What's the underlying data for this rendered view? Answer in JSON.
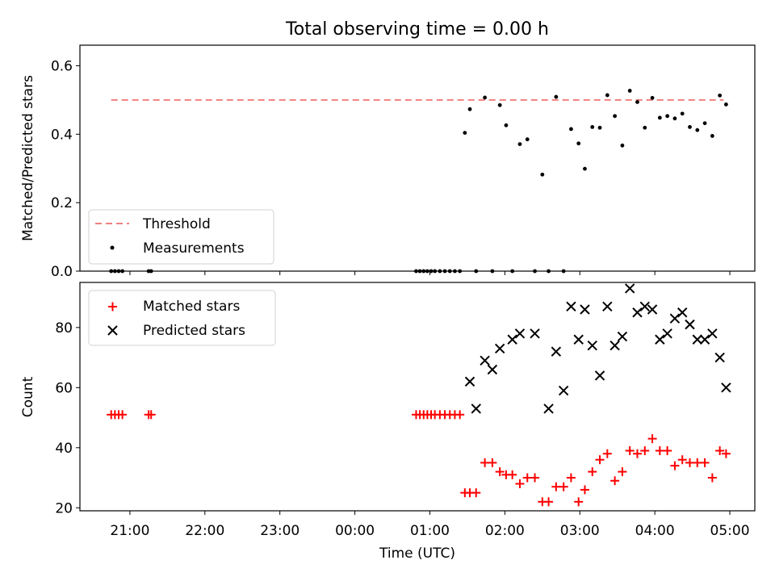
{
  "chart_data": [
    {
      "type": "scatter",
      "panel": "top",
      "title": "Total observing time = 0.00 h",
      "xlabel": "",
      "ylabel": "Matched/Predicted stars",
      "xlim": [
        "20:20",
        "05:20"
      ],
      "ylim": [
        0.0,
        0.66
      ],
      "y_ticks": [
        0.0,
        0.2,
        0.4,
        0.6
      ],
      "y_tick_labels": [
        "0.0",
        "0.2",
        "0.4",
        "0.6"
      ],
      "grid": false,
      "legend_position": "lower-left",
      "series": [
        {
          "name": "Threshold",
          "style": "dashed-line",
          "color": "#f08080",
          "x": [
            "20:45",
            "04:55"
          ],
          "y": [
            0.5,
            0.5
          ]
        },
        {
          "name": "Measurements",
          "style": "dot",
          "color": "#000000",
          "x": [
            "20:45",
            "20:48",
            "20:51",
            "20:54",
            "21:15",
            "21:17",
            "00:49",
            "00:52",
            "00:55",
            "00:58",
            "01:01",
            "01:04",
            "01:08",
            "01:12",
            "01:16",
            "01:20",
            "01:24",
            "01:28",
            "01:32",
            "01:37",
            "01:44",
            "01:50",
            "01:56",
            "02:01",
            "02:06",
            "02:12",
            "02:18",
            "02:24",
            "02:30",
            "02:35",
            "02:41",
            "02:47",
            "02:53",
            "02:59",
            "03:04",
            "03:10",
            "03:16",
            "03:22",
            "03:28",
            "03:34",
            "03:40",
            "03:46",
            "03:52",
            "03:58",
            "04:04",
            "04:10",
            "04:16",
            "04:22",
            "04:28",
            "04:34",
            "04:40",
            "04:46",
            "04:52",
            "04:57"
          ],
          "y": [
            0.0,
            0.0,
            0.0,
            0.0,
            0.0,
            0.0,
            0.0,
            0.0,
            0.0,
            0.0,
            0.0,
            0.0,
            0.0,
            0.0,
            0.0,
            0.0,
            0.0,
            0.404,
            0.473,
            0.0,
            0.507,
            0.0,
            0.485,
            0.426,
            0.0,
            0.371,
            0.385,
            0.0,
            0.282,
            0.0,
            0.509,
            0.0,
            0.415,
            0.373,
            0.299,
            0.421,
            0.419,
            0.514,
            0.453,
            0.367,
            0.527,
            0.494,
            0.419,
            0.506,
            0.448,
            0.453,
            0.446,
            0.46,
            0.421,
            0.412,
            0.432,
            0.395,
            0.513,
            0.487
          ]
        }
      ]
    },
    {
      "type": "scatter",
      "panel": "bottom",
      "title": "",
      "xlabel": "Time (UTC)",
      "ylabel": "Count",
      "xlim": [
        "20:20",
        "05:20"
      ],
      "ylim": [
        19,
        95
      ],
      "x_ticks": [
        "21:00",
        "22:00",
        "23:00",
        "00:00",
        "01:00",
        "02:00",
        "03:00",
        "04:00",
        "05:00"
      ],
      "y_ticks": [
        20,
        40,
        60,
        80
      ],
      "y_tick_labels": [
        "20",
        "40",
        "60",
        "80"
      ],
      "grid": false,
      "legend_position": "upper-left",
      "series": [
        {
          "name": "Matched stars",
          "marker": "plus",
          "color": "#ff0000",
          "x": [
            "20:45",
            "20:48",
            "20:51",
            "20:54",
            "21:15",
            "21:17",
            "00:49",
            "00:52",
            "00:55",
            "00:58",
            "01:01",
            "01:04",
            "01:08",
            "01:12",
            "01:16",
            "01:20",
            "01:24",
            "01:28",
            "01:32",
            "01:37",
            "01:44",
            "01:50",
            "01:56",
            "02:01",
            "02:06",
            "02:12",
            "02:18",
            "02:24",
            "02:30",
            "02:35",
            "02:41",
            "02:47",
            "02:53",
            "02:59",
            "03:04",
            "03:10",
            "03:16",
            "03:22",
            "03:28",
            "03:34",
            "03:40",
            "03:46",
            "03:52",
            "03:58",
            "04:04",
            "04:10",
            "04:16",
            "04:22",
            "04:28",
            "04:34",
            "04:40",
            "04:46",
            "04:52",
            "04:57"
          ],
          "y": [
            51,
            51,
            51,
            51,
            51,
            51,
            51,
            51,
            51,
            51,
            51,
            51,
            51,
            51,
            51,
            51,
            51,
            25,
            25,
            25,
            35,
            35,
            32,
            31,
            31,
            28,
            30,
            30,
            22,
            22,
            27,
            27,
            30,
            22,
            26,
            32,
            36,
            38,
            29,
            32,
            39,
            38,
            39,
            43,
            39,
            39,
            34,
            36,
            35,
            35,
            35,
            30,
            39,
            38
          ]
        },
        {
          "name": "Predicted stars",
          "marker": "x",
          "color": "#000000",
          "x": [
            "01:32",
            "01:37",
            "01:44",
            "01:50",
            "01:56",
            "02:06",
            "02:12",
            "02:24",
            "02:35",
            "02:41",
            "02:47",
            "02:53",
            "02:59",
            "03:04",
            "03:10",
            "03:16",
            "03:22",
            "03:28",
            "03:34",
            "03:40",
            "03:46",
            "03:52",
            "03:58",
            "04:04",
            "04:10",
            "04:16",
            "04:22",
            "04:28",
            "04:34",
            "04:40",
            "04:46",
            "04:52",
            "04:57"
          ],
          "y": [
            62,
            53,
            69,
            66,
            73,
            76,
            78,
            78,
            53,
            72,
            59,
            87,
            76,
            86,
            74,
            64,
            87,
            74,
            77,
            93,
            85,
            87,
            86,
            76,
            78,
            83,
            85,
            81,
            76,
            76,
            78,
            70,
            60
          ]
        }
      ]
    }
  ]
}
